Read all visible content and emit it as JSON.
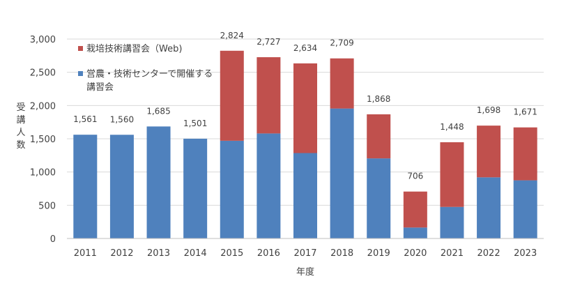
{
  "chart_data": {
    "type": "bar",
    "stacked": true,
    "categories": [
      "2011",
      "2012",
      "2013",
      "2014",
      "2015",
      "2016",
      "2017",
      "2018",
      "2019",
      "2020",
      "2021",
      "2022",
      "2023"
    ],
    "series": [
      {
        "name": "営農・技術センターで開催する講習会",
        "color": "#4f81bd",
        "values": [
          1561,
          1560,
          1685,
          1501,
          1470,
          1580,
          1285,
          1955,
          1205,
          165,
          475,
          920,
          875
        ]
      },
      {
        "name": "栽培技術講習会（Web)",
        "color": "#c0504d",
        "values": [
          0,
          0,
          0,
          0,
          1354,
          1147,
          1349,
          754,
          663,
          541,
          973,
          778,
          796
        ]
      }
    ],
    "totals": [
      1561,
      1560,
      1685,
      1501,
      2824,
      2727,
      2634,
      2709,
      1868,
      706,
      1448,
      1698,
      1671
    ],
    "total_labels": [
      "1,561",
      "1,560",
      "1,685",
      "1,501",
      "2,824",
      "2,727",
      "2,634",
      "2,709",
      "1,868",
      "706",
      "1,448",
      "1,698",
      "1,671"
    ],
    "ylim": [
      0,
      3000
    ],
    "yticks": [
      0,
      500,
      1000,
      1500,
      2000,
      2500,
      3000
    ],
    "ytick_labels": [
      "0",
      "500",
      "1,000",
      "1,500",
      "2,000",
      "2,500",
      "3,000"
    ],
    "xlabel": "年度",
    "ylabel_chars": [
      "受",
      "講",
      "人",
      "数"
    ],
    "legend": {
      "placement": "top-left",
      "items": [
        {
          "lines": [
            "栽培技術講習会（Web)"
          ],
          "color": "#c0504d"
        },
        {
          "lines": [
            "営農・技術センターで開催する",
            "講習会"
          ],
          "color": "#4f81bd"
        }
      ]
    }
  }
}
